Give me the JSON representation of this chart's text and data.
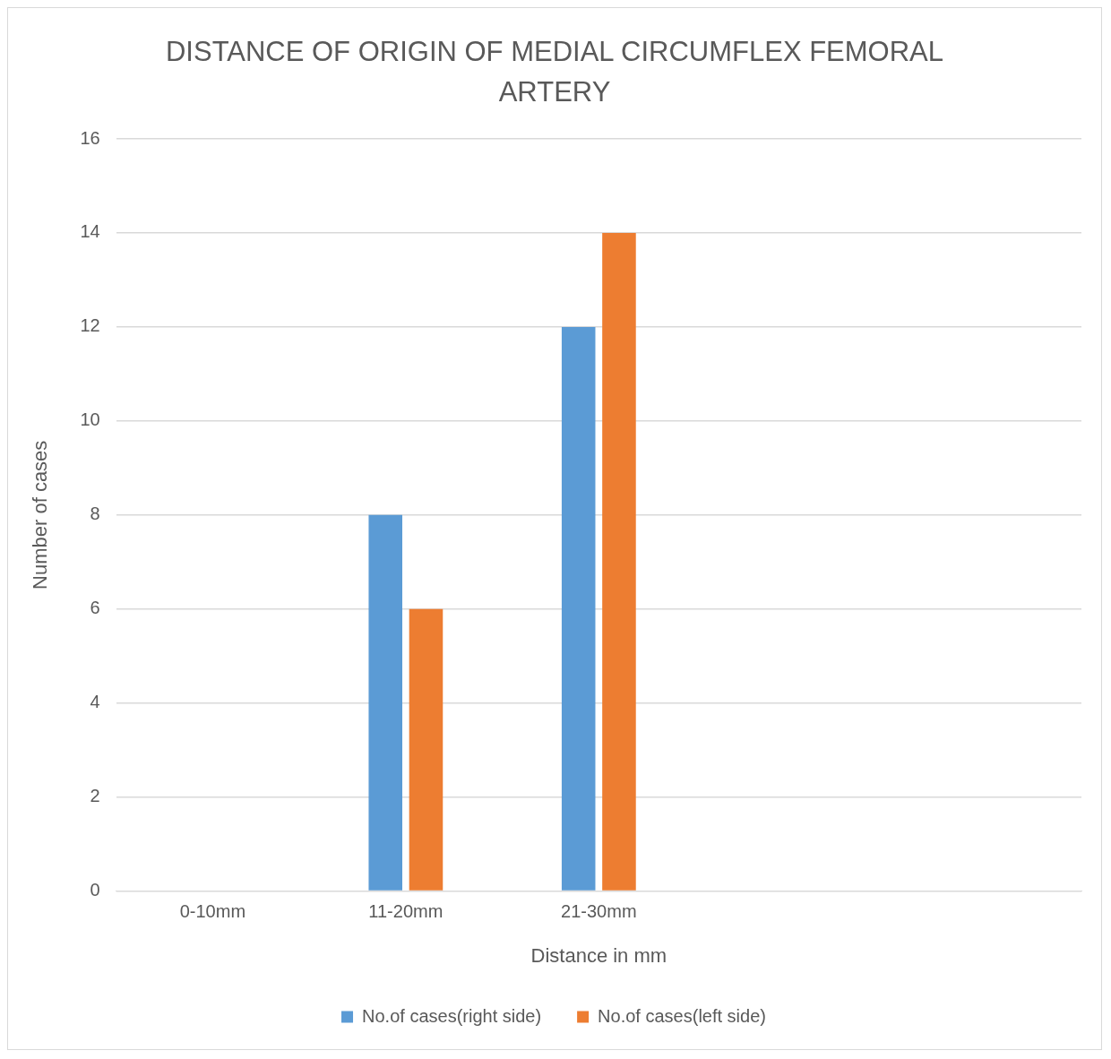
{
  "chart_data": {
    "type": "bar",
    "title": "DISTANCE OF ORIGIN OF MEDIAL CIRCUMFLEX FEMORAL ARTERY",
    "xlabel": "Distance in mm",
    "ylabel": "Number of cases",
    "categories": [
      "0-10mm",
      "11-20mm",
      "21-30mm",
      null,
      null
    ],
    "series": [
      {
        "name": "No.of cases(right side)",
        "color": "#5b9bd5",
        "values": [
          0,
          8,
          12,
          null,
          null
        ]
      },
      {
        "name": "No.of cases(left side)",
        "color": "#ed7d31",
        "values": [
          0,
          6,
          14,
          null,
          null
        ]
      }
    ],
    "ylim": [
      0,
      16
    ],
    "yticks": [
      0,
      2,
      4,
      6,
      8,
      10,
      12,
      14,
      16
    ],
    "grid": "y",
    "legend": "bottom"
  }
}
